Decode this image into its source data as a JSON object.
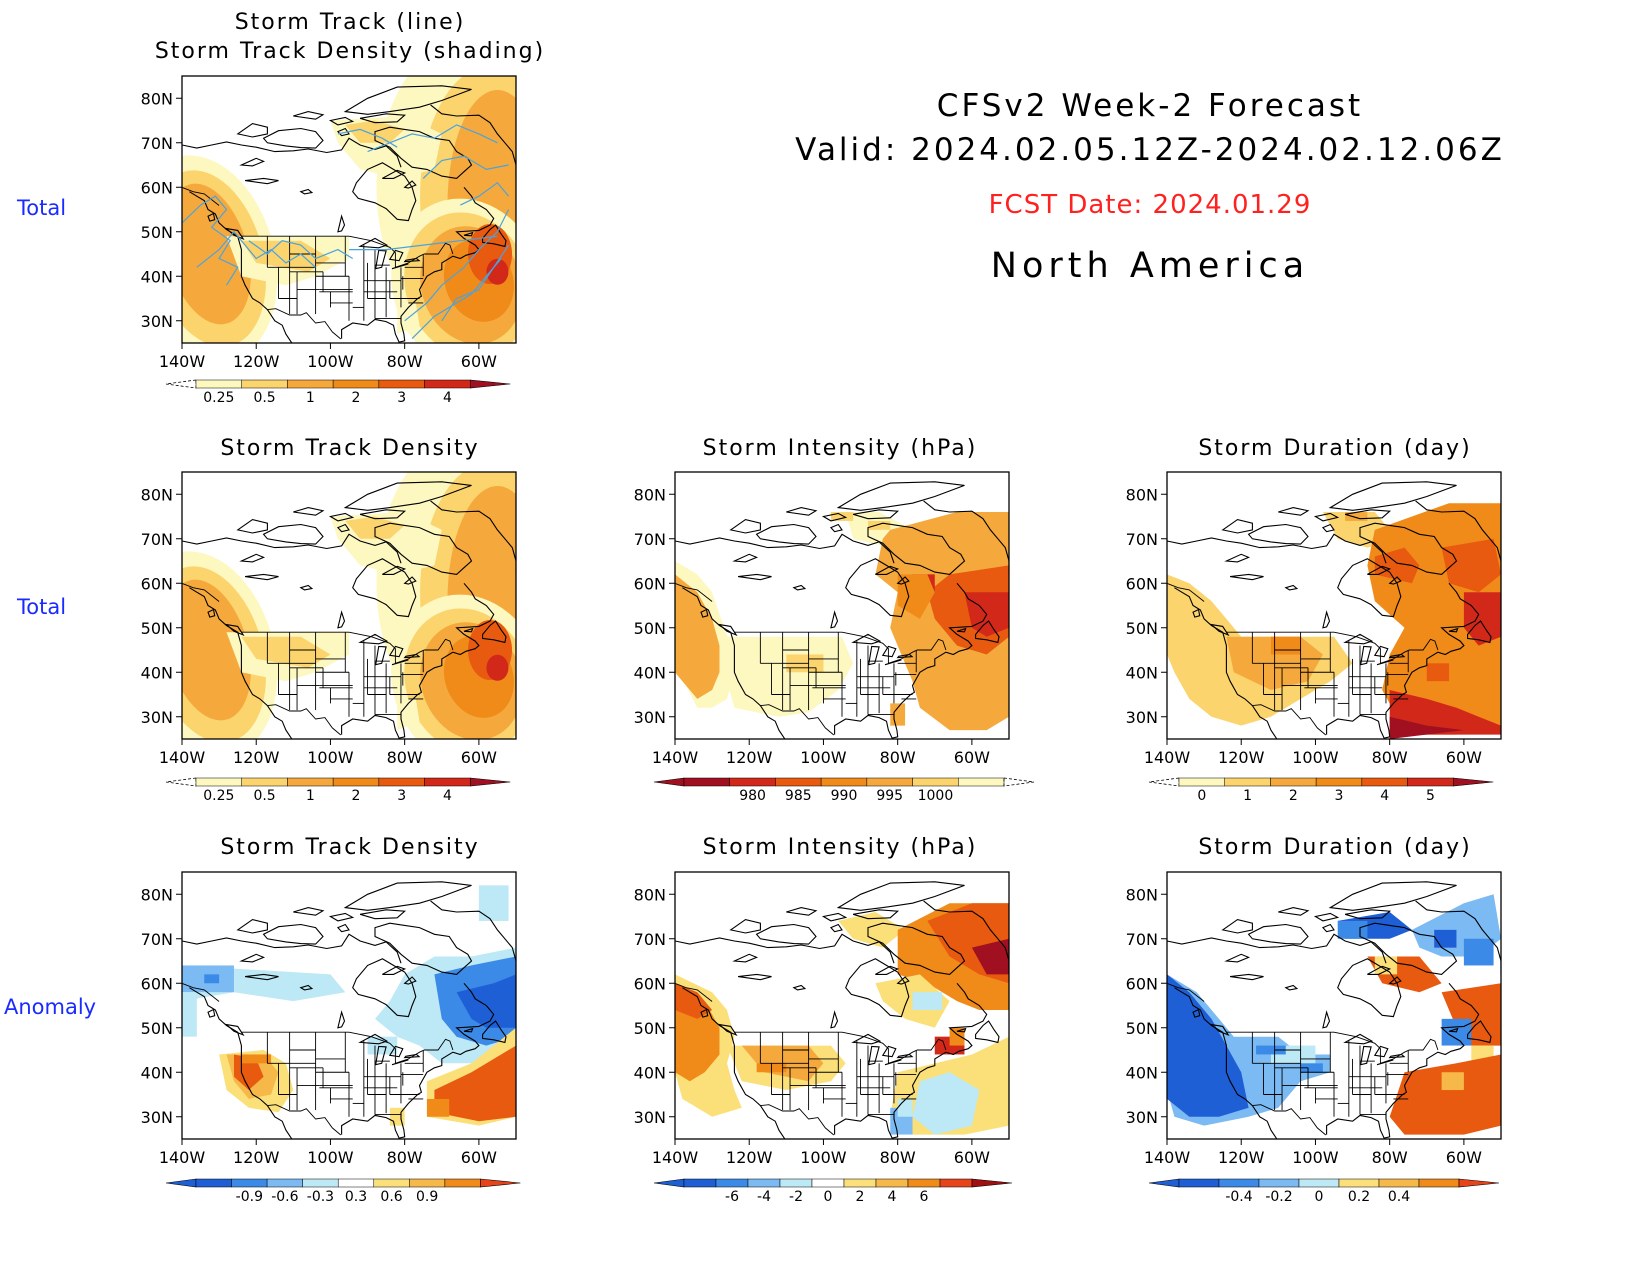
{
  "header": {
    "line1": "CFSv2 Week-2 Forecast",
    "line2": "Valid: 2024.02.05.12Z-2024.02.12.06Z",
    "fcst_date": "FCST Date: 2024.01.29",
    "region": "North America"
  },
  "row_labels": [
    "Total",
    "Total",
    "Anomaly"
  ],
  "axes": {
    "lat_labels": [
      "80N",
      "70N",
      "60N",
      "50N",
      "40N",
      "30N"
    ],
    "lon_labels": [
      "140W",
      "120W",
      "100W",
      "80W",
      "60W"
    ]
  },
  "colors": {
    "row_label": "#1a2bff",
    "fcst_date": "#ff2020",
    "storm_track_line": "#4aa3df",
    "land_outline": "#000000"
  },
  "panels": [
    {
      "id": "p1",
      "title_lines": [
        "Storm Track (line)",
        "Storm Track Density (shading)"
      ],
      "colorbar": {
        "colors": [
          "#fdf7c0",
          "#fbd46e",
          "#f5a93c",
          "#f08a18",
          "#e85a10",
          "#d2281a",
          "#a01020"
        ],
        "labels": [
          "0.25",
          "0.5",
          "1",
          "2",
          "3",
          "4"
        ],
        "triangle_left": "dashed",
        "triangle_right": "#a01020"
      }
    },
    {
      "id": "p2",
      "title_lines": [
        "Storm Track Density"
      ],
      "colorbar": {
        "colors": [
          "#fdf7c0",
          "#fbd46e",
          "#f5a93c",
          "#f08a18",
          "#e85a10",
          "#d2281a",
          "#a01020"
        ],
        "labels": [
          "0.25",
          "0.5",
          "1",
          "2",
          "3",
          "4"
        ],
        "triangle_left": "dashed",
        "triangle_right": "#a01020"
      }
    },
    {
      "id": "p3",
      "title_lines": [
        "Storm Intensity (hPa)"
      ],
      "colorbar": {
        "colors": [
          "#a01020",
          "#d2281a",
          "#e85a10",
          "#f08a18",
          "#f5a93c",
          "#fbd46e",
          "#fdf7c0"
        ],
        "labels": [
          "980",
          "985",
          "990",
          "995",
          "1000"
        ],
        "triangle_left": "#a01020",
        "triangle_right": "dashed"
      }
    },
    {
      "id": "p4",
      "title_lines": [
        "Storm Duration (day)"
      ],
      "colorbar": {
        "colors": [
          "#fdf7c0",
          "#fbd46e",
          "#f5a93c",
          "#f08a18",
          "#e85a10",
          "#d2281a",
          "#a01020"
        ],
        "labels": [
          "0",
          "1",
          "2",
          "3",
          "4",
          "5"
        ],
        "triangle_left": "dashed",
        "triangle_right": "#a01020"
      }
    },
    {
      "id": "p5",
      "title_lines": [
        "Storm Track Density"
      ],
      "colorbar": {
        "colors": [
          "#1f5fd6",
          "#3b8ae8",
          "#7bbaf2",
          "#bde8f5",
          "#ffffff",
          "#fbe07a",
          "#f7b84a",
          "#f08a18",
          "#e8441a"
        ],
        "labels": [
          "-0.9",
          "-0.6",
          "-0.3",
          "0.3",
          "0.6",
          "0.9"
        ],
        "triangle_left": "#1f5fd6",
        "triangle_right": "#e8441a"
      }
    },
    {
      "id": "p6",
      "title_lines": [
        "Storm Intensity (hPa)"
      ],
      "colorbar": {
        "colors": [
          "#1f5fd6",
          "#3b8ae8",
          "#7bbaf2",
          "#bde8f5",
          "#ffffff",
          "#fbe07a",
          "#f7b84a",
          "#f08a18",
          "#e8441a",
          "#a01010"
        ],
        "labels": [
          "-6",
          "-4",
          "-2",
          "0",
          "2",
          "4",
          "6"
        ],
        "triangle_left": "#1f5fd6",
        "triangle_right": "#a01010"
      }
    },
    {
      "id": "p7",
      "title_lines": [
        "Storm Duration (day)"
      ],
      "colorbar": {
        "colors": [
          "#1f5fd6",
          "#3b8ae8",
          "#7bbaf2",
          "#bde8f5",
          "#fbe07a",
          "#f7b84a",
          "#f08a18",
          "#e8441a"
        ],
        "labels": [
          "-0.4",
          "-0.2",
          "0",
          "0.2",
          "0.4"
        ],
        "triangle_left": "#1f5fd6",
        "triangle_right": "#e8441a"
      }
    }
  ]
}
